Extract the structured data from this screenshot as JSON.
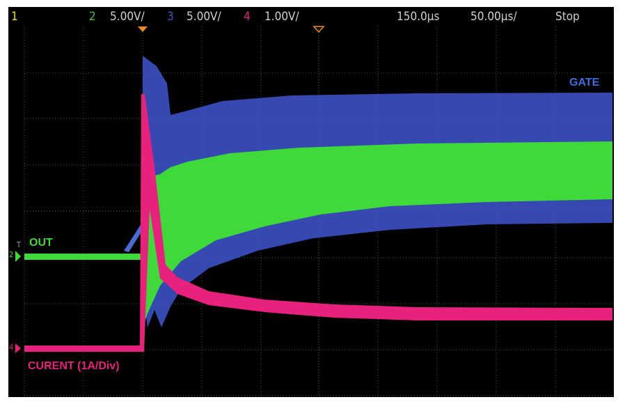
{
  "header": {
    "channel_1": "1",
    "channel_2": "2",
    "channel_2_scale": "5.00V/",
    "channel_3": "3",
    "channel_3_scale": "5.00V/",
    "channel_4": "4",
    "channel_4_scale": "1.00V/",
    "time_delay": "150.0µs",
    "time_scale": "50.00µs/",
    "status": "Stop"
  },
  "traces": {
    "gate": "GATE",
    "out": "OUT",
    "current": "CURENT (1A/Div)"
  },
  "markers": {
    "trigger": "T",
    "channel_2": "2",
    "channel_4": "4"
  }
}
